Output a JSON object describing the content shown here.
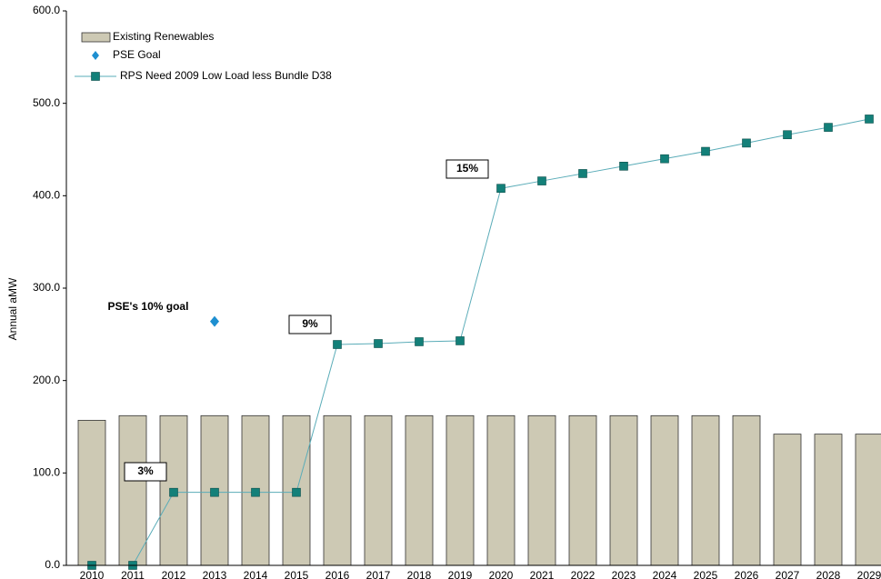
{
  "chart_data": {
    "type": "bar",
    "y_axis_label": "Annual aMW",
    "categories": [
      "2010",
      "2011",
      "2012",
      "2013",
      "2014",
      "2015",
      "2016",
      "2017",
      "2018",
      "2019",
      "2020",
      "2021",
      "2022",
      "2023",
      "2024",
      "2025",
      "2026",
      "2027",
      "2028",
      "2029"
    ],
    "series": [
      {
        "name": "Existing Renewables",
        "type": "bar",
        "color": "#cdc9b4",
        "values": [
          157,
          162,
          162,
          162,
          162,
          162,
          162,
          162,
          162,
          162,
          162,
          162,
          162,
          162,
          162,
          162,
          162,
          142,
          142,
          142
        ]
      },
      {
        "name": "PSE Goal",
        "type": "scatter",
        "color": "#1e8fd0",
        "values": [
          null,
          null,
          null,
          264,
          null,
          null,
          null,
          null,
          null,
          null,
          null,
          null,
          null,
          null,
          null,
          null,
          null,
          null,
          null,
          null
        ]
      },
      {
        "name": "RPS Need 2009 Low Load less Bundle D38",
        "type": "line",
        "color": "#5aacb8",
        "marker_color": "#138079",
        "values": [
          0,
          0,
          79,
          79,
          79,
          79,
          239,
          240,
          242,
          243,
          408,
          416,
          424,
          432,
          440,
          448,
          457,
          466,
          474,
          483
        ]
      }
    ],
    "annotations": [
      "PSE's 10% goal",
      "3%",
      "9%",
      "15%"
    ],
    "ylim": [
      0,
      600
    ],
    "yticks": [
      {
        "value": 0,
        "label": "0.0"
      },
      {
        "value": 100,
        "label": "100.0"
      },
      {
        "value": 200,
        "label": "200.0"
      },
      {
        "value": 300,
        "label": "300.0"
      },
      {
        "value": 400,
        "label": "400.0"
      },
      {
        "value": 500,
        "label": "500.0"
      },
      {
        "value": 600,
        "label": "600.0"
      }
    ],
    "grid": false,
    "legend": "top-left"
  }
}
